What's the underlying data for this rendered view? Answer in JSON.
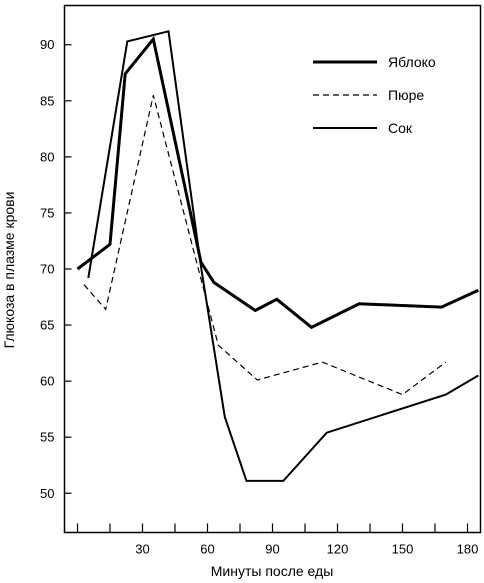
{
  "chart_data": {
    "type": "line",
    "title": "",
    "xlabel": "Минуты после еды",
    "ylabel": "Глюкоза в плазме крови",
    "xlim": [
      -6,
      186
    ],
    "ylim": [
      46.5,
      93.5
    ],
    "xticks": [
      0,
      15,
      30,
      45,
      60,
      75,
      90,
      105,
      120,
      135,
      150,
      165,
      180
    ],
    "xtick_labels": [
      "",
      "",
      "30",
      "",
      "60",
      "",
      "90",
      "",
      "120",
      "",
      "150",
      "",
      "180"
    ],
    "yticks": [
      50,
      55,
      60,
      65,
      70,
      75,
      80,
      85,
      90
    ],
    "ytick_labels": [
      "50",
      "55",
      "60",
      "65",
      "70",
      "75",
      "80",
      "85",
      "90"
    ],
    "grid": false,
    "legend_position": "top-right",
    "series": [
      {
        "name": "Яблоко",
        "style": "thick",
        "x": [
          0,
          15,
          22,
          35,
          57,
          63,
          82,
          92,
          108,
          130,
          168,
          185
        ],
        "y": [
          70.0,
          72.2,
          87.4,
          90.5,
          70.6,
          68.8,
          66.3,
          67.3,
          64.8,
          66.9,
          66.6,
          68.1
        ]
      },
      {
        "name": "Пюре",
        "style": "dashed",
        "x": [
          3,
          13,
          35,
          57,
          65,
          83,
          113,
          150,
          170
        ],
        "y": [
          68.6,
          66.4,
          85.5,
          69.1,
          63.2,
          60.1,
          61.7,
          58.8,
          61.7
        ]
      },
      {
        "name": "Сок",
        "style": "thin",
        "x": [
          5,
          23,
          42,
          57,
          68,
          78,
          95,
          115,
          170,
          185
        ],
        "y": [
          69.2,
          90.3,
          91.2,
          70.2,
          56.8,
          51.1,
          51.1,
          55.4,
          58.8,
          60.5
        ]
      }
    ]
  }
}
